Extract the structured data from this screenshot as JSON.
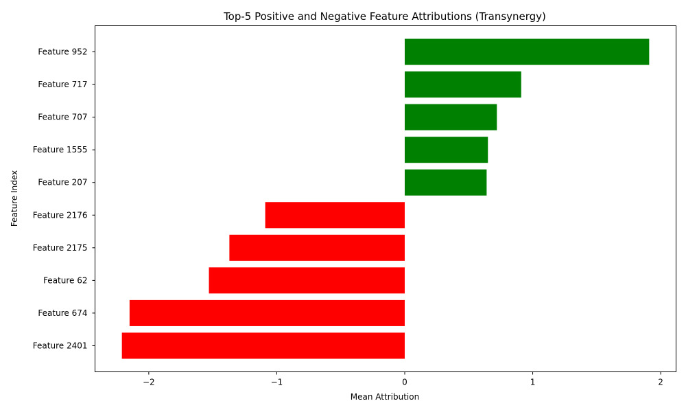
{
  "chart_data": {
    "type": "bar",
    "orientation": "horizontal",
    "title": "Top-5 Positive and Negative Feature Attributions (Transynergy)",
    "xlabel": "Mean Attribution",
    "ylabel": "Feature Index",
    "categories": [
      "Feature 952",
      "Feature 717",
      "Feature 707",
      "Feature 1555",
      "Feature 207",
      "Feature 2176",
      "Feature 2175",
      "Feature 62",
      "Feature 674",
      "Feature 2401"
    ],
    "values": [
      1.91,
      0.91,
      0.72,
      0.65,
      0.64,
      -1.09,
      -1.37,
      -1.53,
      -2.15,
      -2.21
    ],
    "xlim": [
      -2.42,
      2.12
    ],
    "xticks": [
      -2,
      -1,
      0,
      1,
      2
    ],
    "xtick_labels": [
      "−2",
      "−1",
      "0",
      "1",
      "2"
    ],
    "grid": false,
    "colors": {
      "positive": "#008000",
      "negative": "#ff0000"
    }
  }
}
